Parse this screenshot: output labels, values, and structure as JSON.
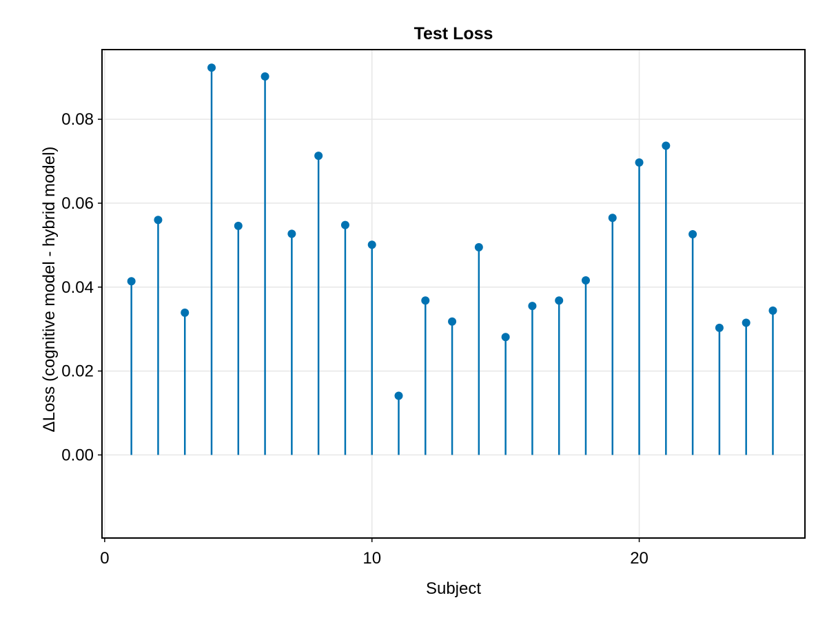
{
  "chart_data": {
    "type": "stem",
    "title": "Test Loss",
    "xlabel": "Subject",
    "ylabel": "ΔLoss (cognitive model - hybrid model)",
    "xlim": [
      -0.1,
      26.2
    ],
    "ylim": [
      -0.0198,
      0.0966
    ],
    "xticks": [
      0,
      10,
      20
    ],
    "xtick_labels": [
      "0",
      "10",
      "20"
    ],
    "yticks": [
      0.0,
      0.02,
      0.04,
      0.06,
      0.08
    ],
    "ytick_labels": [
      "0.00",
      "0.02",
      "0.04",
      "0.06",
      "0.08"
    ],
    "grid": true,
    "color": "#0072b2",
    "x": [
      1,
      2,
      3,
      4,
      5,
      6,
      7,
      8,
      9,
      10,
      11,
      12,
      13,
      14,
      15,
      16,
      17,
      18,
      19,
      20,
      21,
      22,
      23,
      24,
      25
    ],
    "values": [
      0.0414,
      0.056,
      0.0339,
      0.0923,
      0.0546,
      0.0902,
      0.0527,
      0.0713,
      0.0548,
      0.0501,
      0.0141,
      0.0368,
      0.0318,
      0.0495,
      0.0281,
      0.0355,
      0.0368,
      0.0416,
      0.0565,
      0.0697,
      0.0737,
      0.0526,
      0.0303,
      0.0315,
      0.0344
    ]
  }
}
